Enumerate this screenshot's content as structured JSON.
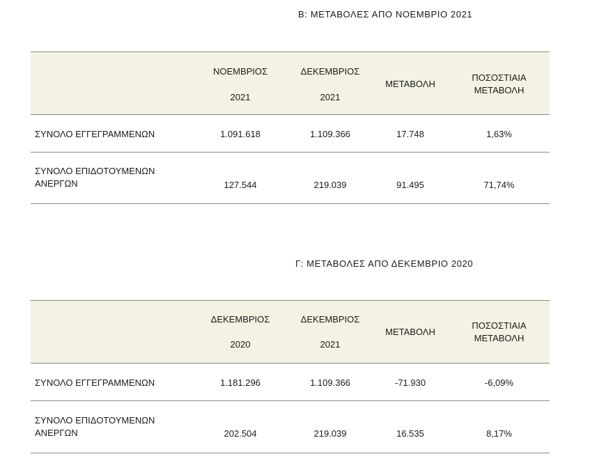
{
  "section_b": {
    "title": "Β: ΜΕΤΑΒΟΛΕΣ ΑΠΟ ΝΟΕΜΒΡΙΟ 2021",
    "headers": [
      {
        "line1": "ΝΟΕΜΒΡΙΟΣ",
        "line2": "2021"
      },
      {
        "line1": "ΔΕΚΕΜΒΡΙΟΣ",
        "line2": "2021"
      },
      {
        "line1": "ΜΕΤΑΒΟΛΗ",
        "line2": ""
      },
      {
        "line1": "ΠΟΣΟΣΤΙΑΙΑ",
        "line2": "ΜΕΤΑΒΟΛΗ"
      }
    ],
    "rows": [
      {
        "label1": "ΣΥΝΟΛΟ ΕΓΓΕΓΡΑΜΜΕΝΩΝ",
        "label2": "",
        "values": [
          "1.091.618",
          "1.109.366",
          "17.748",
          "1,63%"
        ]
      },
      {
        "label1": "ΣΥΝΟΛΟ ΕΠΙΔΟΤΟΥΜΕΝΩΝ",
        "label2": "ΑΝΕΡΓΩΝ",
        "values": [
          "127.544",
          "219.039",
          "91.495",
          "71,74%"
        ]
      }
    ]
  },
  "section_g": {
    "title": "Γ: ΜΕΤΑΒΟΛΕΣ ΑΠΟ ΔΕΚΕΜΒΡΙΟ 2020",
    "headers": [
      {
        "line1": "ΔΕΚΕΜΒΡΙΟΣ",
        "line2": "2020"
      },
      {
        "line1": "ΔΕΚΕΜΒΡΙΟΣ",
        "line2": "2021"
      },
      {
        "line1": "ΜΕΤΑΒΟΛΗ",
        "line2": ""
      },
      {
        "line1": "ΠΟΣΟΣΤΙΑΙΑ",
        "line2": "ΜΕΤΑΒΟΛΗ"
      }
    ],
    "rows": [
      {
        "label1": "ΣΥΝΟΛΟ ΕΓΓΕΓΡΑΜΜΕΝΩΝ",
        "label2": "",
        "values": [
          "1.181.296",
          "1.109.366",
          "-71.930",
          "-6,09%"
        ]
      },
      {
        "label1": "ΣΥΝΟΛΟ ΕΠΙΔΟΤΟΥΜΕΝΩΝ",
        "label2": "ΑΝΕΡΓΩΝ",
        "values": [
          "202.504",
          "219.039",
          "16.535",
          "8,17%"
        ]
      }
    ]
  }
}
